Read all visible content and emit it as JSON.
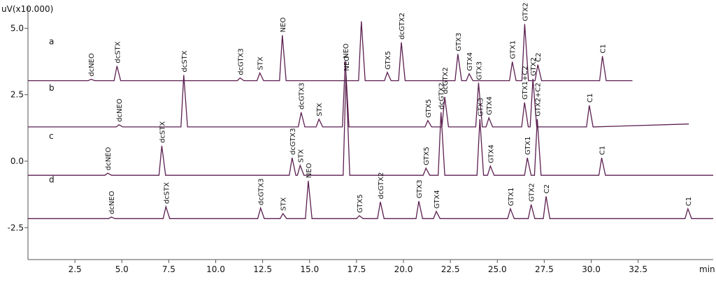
{
  "chart_data": {
    "type": "line",
    "y_label": "uV(x10.000)",
    "x_label": "min",
    "xlim": [
      0,
      36.5
    ],
    "ylim": [
      -3.7,
      5.8
    ],
    "xticks": [
      2.5,
      {
        "value": 5,
        "label": "5.0"
      },
      7.5,
      {
        "value": 10,
        "label": "10.0"
      },
      12.5,
      {
        "value": 15,
        "label": "15.0"
      },
      17.5,
      {
        "value": 20,
        "label": "20.0"
      },
      22.5,
      {
        "value": 25,
        "label": "25.0"
      },
      27.5,
      {
        "value": 30,
        "label": "30.0"
      },
      32.5
    ],
    "yticks": [
      {
        "value": 5,
        "label": "5.0"
      },
      2.5,
      {
        "value": 0,
        "label": "0.0"
      },
      -2.5
    ],
    "series": [
      {
        "name": "a",
        "color": "#5b1f50",
        "x": [
          0,
          3.21,
          3.36,
          3.56,
          4.59,
          4.74,
          4.94,
          11.15,
          11.3,
          11.5,
          12.2,
          12.35,
          12.55,
          13.4,
          13.55,
          13.75,
          17.61,
          17.76,
          17.96,
          18.99,
          19.14,
          19.34,
          19.74,
          19.89,
          20.09,
          22.75,
          22.9,
          23.1,
          23.35,
          23.5,
          23.7,
          25.65,
          25.8,
          26.0,
          26.31,
          26.46,
          26.66,
          27.01,
          27.16,
          27.36,
          30.45,
          30.6,
          30.8,
          32.2
        ],
        "values": [
          3.03,
          3.03,
          3.08,
          3.03,
          3.03,
          3.58,
          3.03,
          3.03,
          3.13,
          3.03,
          3.03,
          3.32,
          3.03,
          3.03,
          4.74,
          3.03,
          3.03,
          5.26,
          3.03,
          3.03,
          3.34,
          3.03,
          3.03,
          4.47,
          3.03,
          3.03,
          4.03,
          3.03,
          3.03,
          3.29,
          3.03,
          3.03,
          3.74,
          3.03,
          3.03,
          5.16,
          3.03,
          3.03,
          3.63,
          3.03,
          3.03,
          3.95,
          3.03,
          3.03
        ],
        "annotations": [
          {
            "text": "dcNEO",
            "x": 3.36
          },
          {
            "text": "dcSTX",
            "x": 4.74
          },
          {
            "text": "dcGTX3",
            "x": 11.3
          },
          {
            "text": "STX",
            "x": 12.35
          },
          {
            "text": "NEO",
            "x": 13.55
          },
          {
            "text": "GTX5",
            "x": 19.14
          },
          {
            "text": "dcGTX2",
            "x": 19.89
          },
          {
            "text": "GTX3",
            "x": 22.9
          },
          {
            "text": "GTX4",
            "x": 23.5
          },
          {
            "text": "GTX1",
            "x": 25.8
          },
          {
            "text": "GTX2",
            "x": 26.46
          },
          {
            "text": "C2",
            "x": 27.16
          },
          {
            "text": "C1",
            "x": 30.6
          }
        ]
      },
      {
        "name": "b",
        "color": "#5b1f50",
        "x": [
          0,
          4.7,
          4.85,
          5.05,
          8.15,
          8.3,
          8.5,
          14.4,
          14.55,
          14.75,
          15.35,
          15.5,
          15.7,
          16.75,
          16.9,
          17.1,
          21.15,
          21.3,
          21.5,
          22.05,
          22.2,
          22.4,
          23.85,
          24.0,
          24.2,
          24.4,
          24.55,
          24.75,
          26.3,
          26.45,
          26.65,
          26.75,
          26.9,
          27.1,
          29.75,
          29.9,
          30.1,
          35.2
        ],
        "values": [
          1.29,
          1.29,
          1.37,
          1.29,
          1.29,
          3.24,
          1.29,
          1.29,
          1.84,
          1.29,
          1.29,
          1.58,
          1.29,
          1.29,
          3.76,
          1.29,
          1.29,
          1.53,
          1.29,
          1.29,
          2.42,
          1.29,
          1.29,
          2.95,
          1.29,
          1.29,
          1.63,
          1.29,
          1.29,
          2.21,
          1.29,
          1.29,
          3.1,
          1.29,
          1.29,
          2.1,
          1.29,
          1.4
        ],
        "annotations": [
          {
            "text": "dcNEO",
            "x": 4.85
          },
          {
            "text": "dcSTX",
            "x": 8.3
          },
          {
            "text": "dcGTX3",
            "x": 14.55
          },
          {
            "text": "STX",
            "x": 15.5
          },
          {
            "text": "NEO",
            "x": 16.9
          },
          {
            "text": "GTX5",
            "x": 21.3
          },
          {
            "text": "dcGTX2",
            "x": 22.2
          },
          {
            "text": "GTX3",
            "x": 24.0
          },
          {
            "text": "GTX4",
            "x": 24.55
          },
          {
            "text": "GTX1+C2",
            "x": 26.45
          },
          {
            "text": "GTX2",
            "x": 26.9
          },
          {
            "text": "C1",
            "x": 29.9
          }
        ]
      },
      {
        "name": "c",
        "color": "#5b1f50",
        "x": [
          0,
          4.1,
          4.25,
          4.45,
          6.98,
          7.13,
          7.33,
          13.92,
          14.07,
          14.27,
          14.35,
          14.5,
          14.7,
          16.79,
          16.94,
          17.14,
          21.05,
          21.2,
          21.4,
          21.85,
          22.0,
          22.2,
          23.92,
          24.07,
          24.27,
          24.48,
          24.63,
          24.83,
          26.45,
          26.6,
          26.8,
          26.98,
          27.13,
          27.33,
          30.41,
          30.56,
          30.76,
          36.5
        ],
        "values": [
          -0.53,
          -0.53,
          -0.45,
          -0.53,
          -0.53,
          0.58,
          -0.53,
          -0.53,
          0.13,
          -0.53,
          -0.53,
          -0.16,
          -0.53,
          -0.53,
          3.29,
          -0.53,
          -0.53,
          -0.26,
          -0.53,
          -0.53,
          1.84,
          -0.53,
          -0.53,
          1.58,
          -0.53,
          -0.53,
          -0.18,
          -0.53,
          -0.53,
          0.13,
          -0.53,
          -0.53,
          1.58,
          -0.53,
          -0.53,
          0.13,
          -0.53,
          -0.53
        ],
        "annotations": [
          {
            "text": "dcNEO",
            "x": 4.25
          },
          {
            "text": "dcSTX",
            "x": 7.13
          },
          {
            "text": "dcGTX3",
            "x": 14.07
          },
          {
            "text": "STX",
            "x": 14.5
          },
          {
            "text": "NEO",
            "x": 16.94
          },
          {
            "text": "GTX5",
            "x": 21.2
          },
          {
            "text": "dcGTX2",
            "x": 22.0
          },
          {
            "text": "GTX3",
            "x": 24.07
          },
          {
            "text": "GTX4",
            "x": 24.63
          },
          {
            "text": "GTX1",
            "x": 26.6
          },
          {
            "text": "GTX2+C2",
            "x": 27.13
          },
          {
            "text": "C1",
            "x": 30.56
          }
        ]
      },
      {
        "name": "d",
        "color": "#5b1f50",
        "x": [
          0,
          4.29,
          4.44,
          4.64,
          7.2,
          7.35,
          7.55,
          12.24,
          12.39,
          12.59,
          13.43,
          13.58,
          13.78,
          14.78,
          14.93,
          15.13,
          17.5,
          17.65,
          17.85,
          18.62,
          18.77,
          18.97,
          20.67,
          20.82,
          21.02,
          21.6,
          21.75,
          21.95,
          25.55,
          25.7,
          25.9,
          26.65,
          26.8,
          27.0,
          27.45,
          27.6,
          27.8,
          35.0,
          35.15,
          35.35,
          36.5
        ],
        "values": [
          -2.16,
          -2.16,
          -2.1,
          -2.16,
          -2.16,
          -1.71,
          -2.16,
          -2.16,
          -1.76,
          -2.16,
          -2.16,
          -1.97,
          -2.16,
          -2.16,
          -0.74,
          -2.16,
          -2.16,
          -2.05,
          -2.16,
          -2.16,
          -1.53,
          -2.16,
          -2.16,
          -1.5,
          -2.16,
          -2.16,
          -1.89,
          -2.16,
          -2.16,
          -1.79,
          -2.16,
          -2.16,
          -1.63,
          -2.16,
          -2.16,
          -1.32,
          -2.16,
          -2.16,
          -1.79,
          -2.16,
          -2.16
        ],
        "annotations": [
          {
            "text": "dcNEO",
            "x": 4.44
          },
          {
            "text": "dcSTX",
            "x": 7.35
          },
          {
            "text": "dcGTX3",
            "x": 12.39
          },
          {
            "text": "STX",
            "x": 13.58
          },
          {
            "text": "NEO",
            "x": 14.93
          },
          {
            "text": "GTX5",
            "x": 17.65
          },
          {
            "text": "dcGTX2",
            "x": 18.77
          },
          {
            "text": "GTX3",
            "x": 20.82
          },
          {
            "text": "GTX4",
            "x": 21.75
          },
          {
            "text": "GTX1",
            "x": 25.7
          },
          {
            "text": "GTX2",
            "x": 26.8
          },
          {
            "text": "C2",
            "x": 27.6
          },
          {
            "text": "C1",
            "x": 35.15
          }
        ]
      }
    ]
  }
}
